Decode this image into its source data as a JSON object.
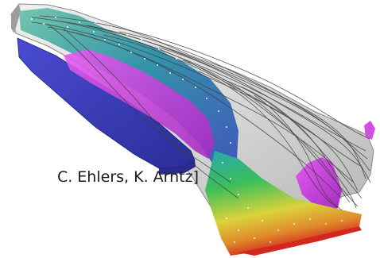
{
  "image": {
    "type": "3D flow visualization",
    "description_icon": "flow-streamlines-icon"
  },
  "caption": {
    "credit_text": "C. Ehlers, K. Arntz]"
  },
  "colors": {
    "background": "#ffffff",
    "shell_gray": "#d6d6d6",
    "shell_shadow": "#9a9a9a",
    "blue_block": "#3d3fbf",
    "magenta_surface": "#d23fe0",
    "teal": "#2fa6a6",
    "green": "#3fbf4c",
    "yellow": "#e3d23a",
    "red": "#d32a1f",
    "streamline": "#3c3c3c"
  }
}
